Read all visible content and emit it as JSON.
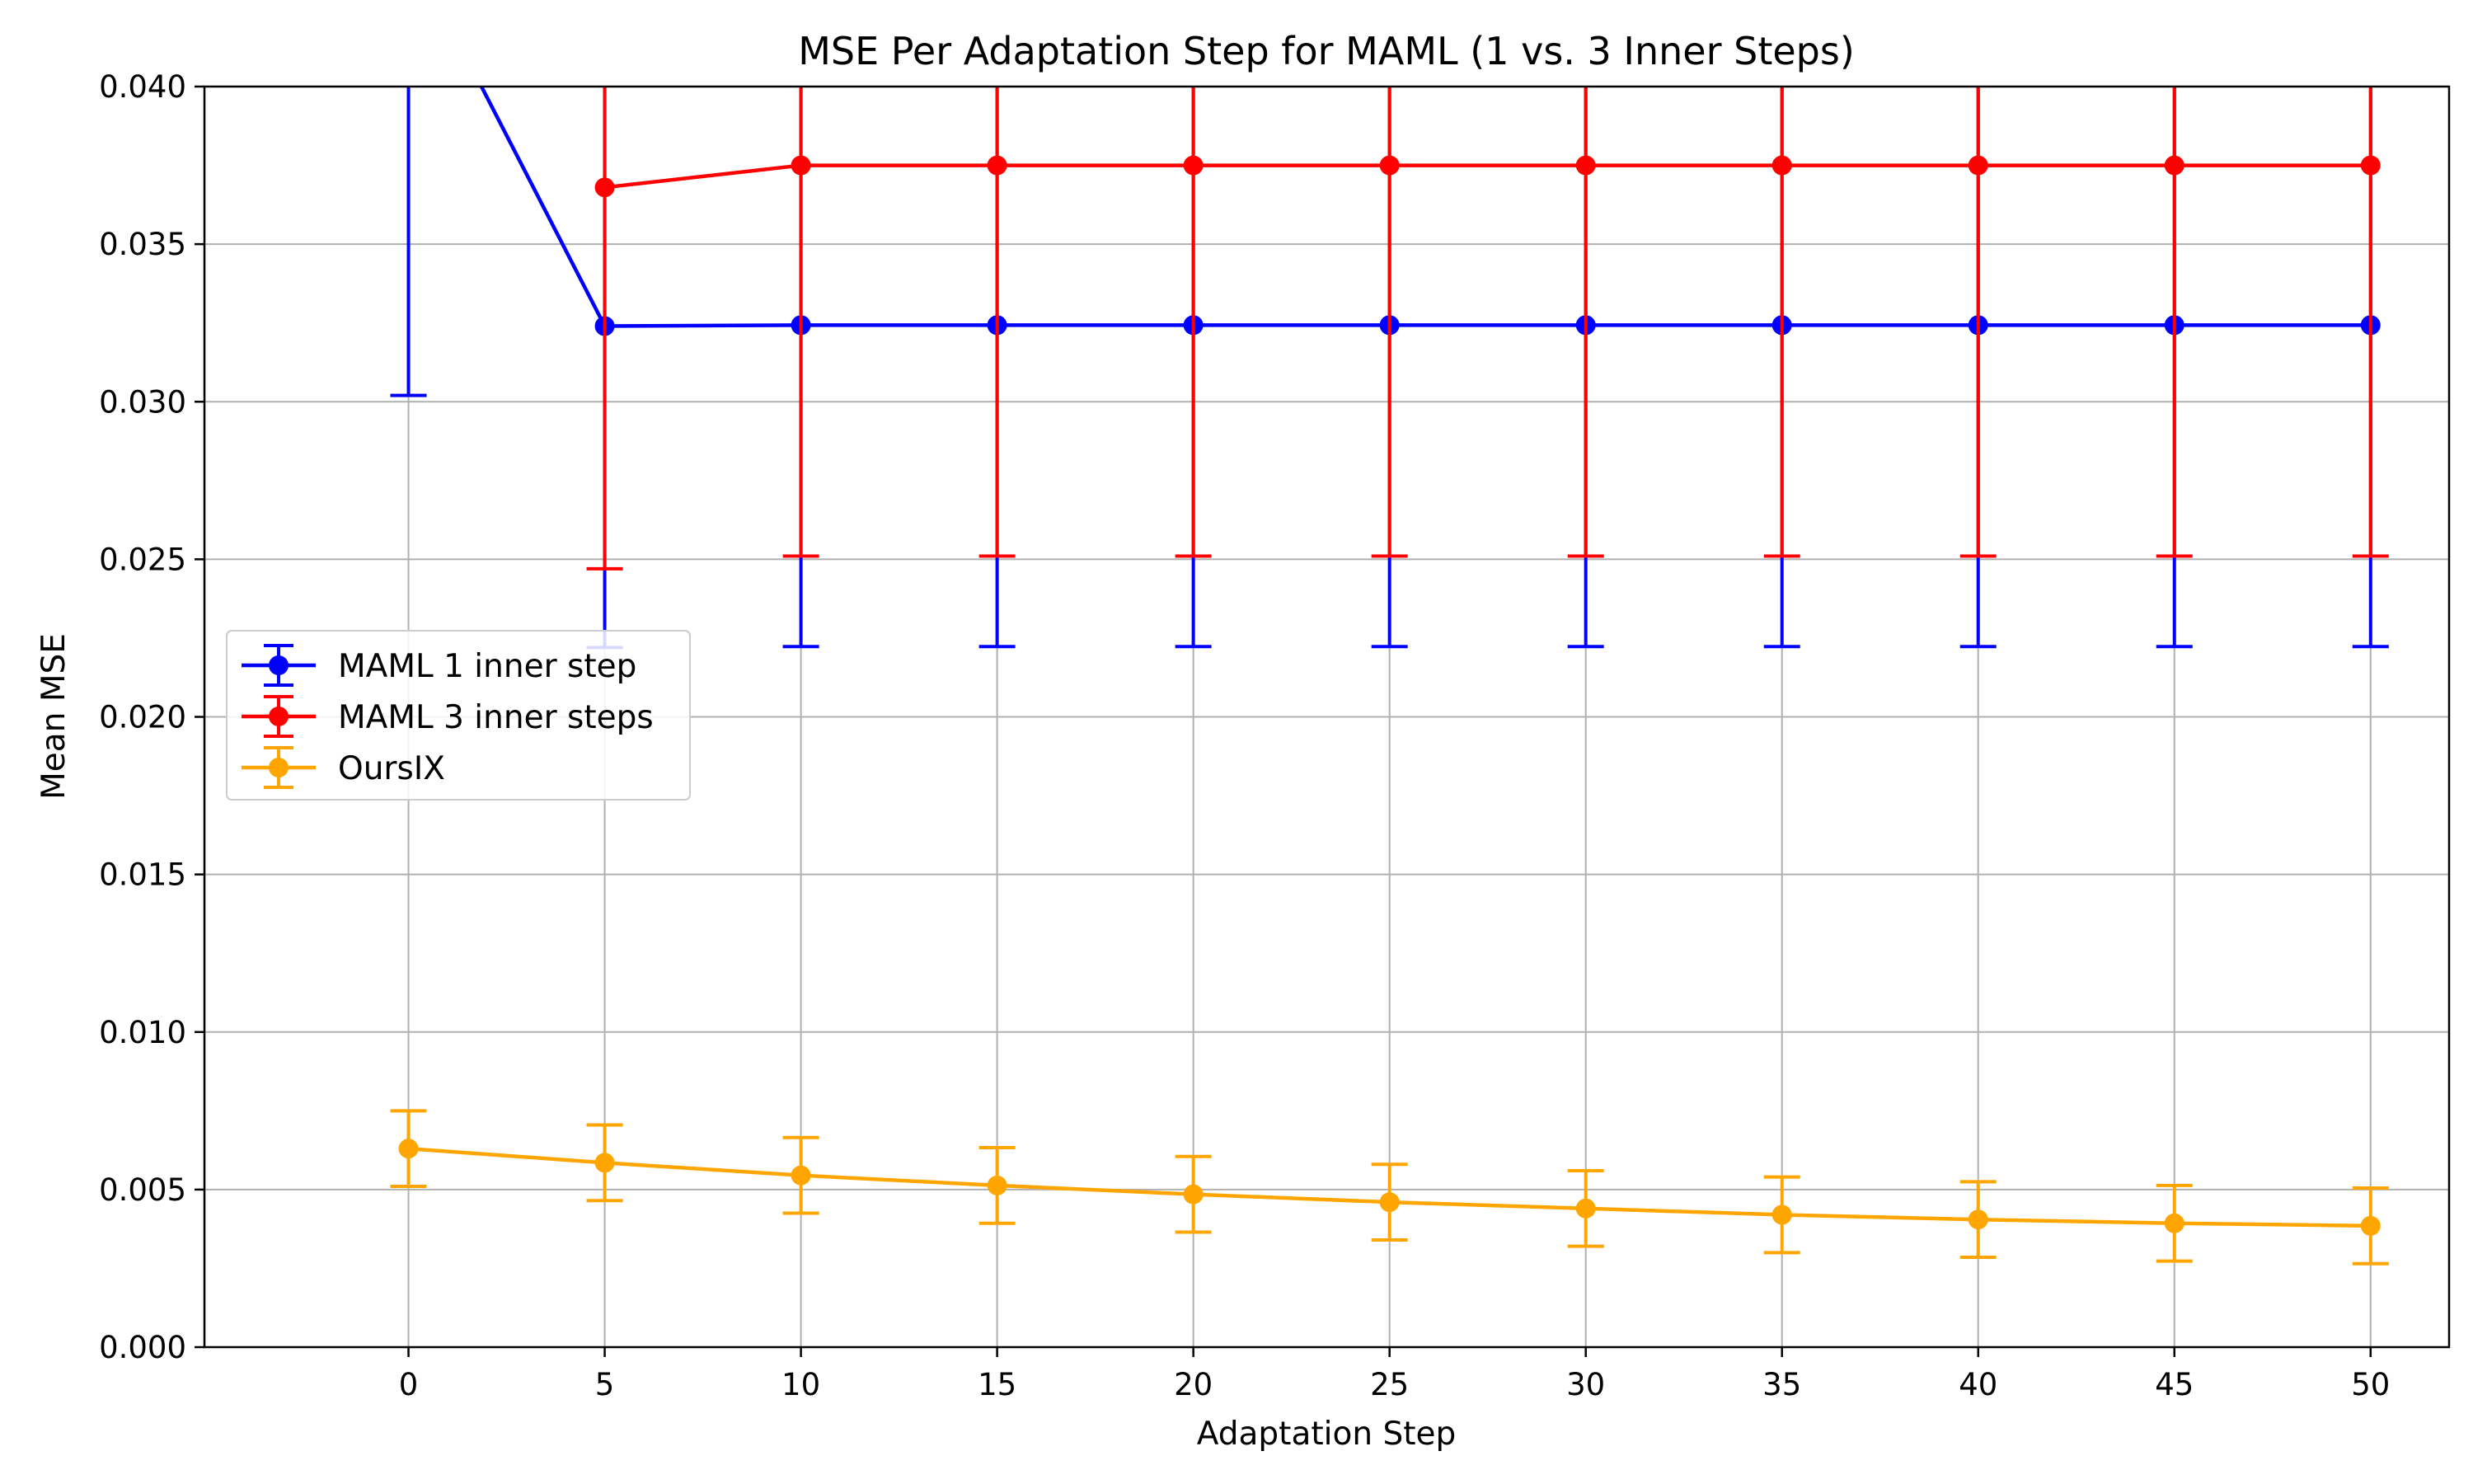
{
  "chart_data": {
    "type": "line",
    "title": "MSE Per Adaptation Step for MAML (1 vs. 3 Inner Steps)",
    "xlabel": "Adaptation Step",
    "ylabel": "Mean MSE",
    "xlim": [
      -5.2,
      52
    ],
    "ylim": [
      0,
      0.04
    ],
    "x_ticks": [
      0,
      5,
      10,
      15,
      20,
      25,
      30,
      35,
      40,
      45,
      50
    ],
    "y_ticks": [
      0.0,
      0.005,
      0.01,
      0.015,
      0.02,
      0.025,
      0.03,
      0.035,
      0.04
    ],
    "y_tick_labels": [
      "0.000",
      "0.005",
      "0.010",
      "0.015",
      "0.020",
      "0.025",
      "0.030",
      "0.035",
      "0.040"
    ],
    "grid": true,
    "legend_position": "center-left",
    "series": [
      {
        "name": "MAML 1 inner step",
        "color": "#0000ff",
        "x": [
          0,
          5,
          10,
          15,
          20,
          25,
          30,
          35,
          40,
          45,
          50
        ],
        "y": [
          0.0445,
          0.0324,
          0.03243,
          0.03243,
          0.03243,
          0.03243,
          0.03243,
          0.03243,
          0.03243,
          0.03243,
          0.03243
        ],
        "yerr": [
          0.0143,
          0.0102,
          0.0102,
          0.0102,
          0.0102,
          0.0102,
          0.0102,
          0.0102,
          0.0102,
          0.0102,
          0.0102
        ]
      },
      {
        "name": "MAML 3 inner steps",
        "color": "#ff0000",
        "x": [
          5,
          10,
          15,
          20,
          25,
          30,
          35,
          40,
          45,
          50
        ],
        "y": [
          0.0368,
          0.0375,
          0.0375,
          0.0375,
          0.0375,
          0.0375,
          0.0375,
          0.0375,
          0.0375,
          0.0375
        ],
        "yerr": [
          0.0121,
          0.0124,
          0.0124,
          0.0124,
          0.0124,
          0.0124,
          0.0124,
          0.0124,
          0.0124,
          0.0124
        ]
      },
      {
        "name": "OursIX",
        "color": "#ffa500",
        "x": [
          0,
          5,
          10,
          15,
          20,
          25,
          30,
          35,
          40,
          45,
          50
        ],
        "y": [
          0.0063,
          0.00585,
          0.00545,
          0.00513,
          0.00485,
          0.0046,
          0.0044,
          0.0042,
          0.00405,
          0.00393,
          0.00385
        ],
        "yerr": [
          0.0012,
          0.0012,
          0.0012,
          0.0012,
          0.0012,
          0.0012,
          0.0012,
          0.0012,
          0.0012,
          0.0012,
          0.0012
        ]
      }
    ]
  }
}
